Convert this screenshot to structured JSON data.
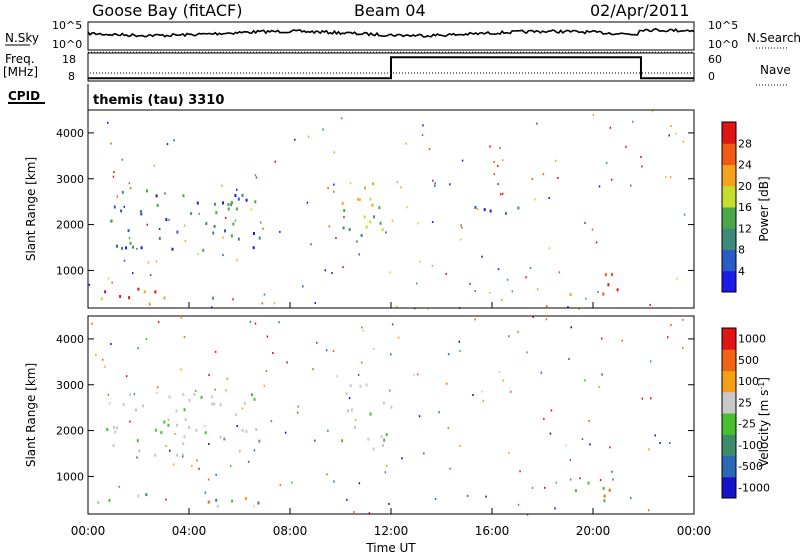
{
  "header": {
    "radar": "Goose Bay (fitACF)",
    "beam": "Beam 04",
    "date": "02/Apr/2011"
  },
  "panels": {
    "noise": {
      "left_label": "N.Sky",
      "right_label": "N.Search",
      "left_ticks": [
        "10^5",
        "10^0"
      ],
      "right_ticks": [
        "10^5",
        "10^0"
      ],
      "sky_level": 0.45,
      "search_level": 0.35
    },
    "freq": {
      "left_label_top": "Freq.",
      "left_label_unit": "[MHz]",
      "right_label": "Nave",
      "left_ticks": [
        "18",
        "8"
      ],
      "right_ticks": [
        "60",
        "0"
      ],
      "segments": [
        [
          0,
          9.0
        ],
        [
          12.0,
          16.5
        ],
        [
          21.9,
          9.0
        ],
        [
          24.0,
          9.0
        ]
      ]
    },
    "cpid": {
      "label": "CPID",
      "text": "themis (tau) 3310"
    }
  },
  "chart_data": [
    {
      "type": "heatmap",
      "name": "Power",
      "ylabel": "Slant Range [km]",
      "xlabel": "",
      "xlim": [
        0,
        24
      ],
      "ylim": [
        180,
        4500
      ],
      "yticks": [
        "1000",
        "2000",
        "3000",
        "4000"
      ],
      "colorbar": {
        "label": "Power [dB]",
        "ticks": [
          "4",
          "8",
          "12",
          "16",
          "20",
          "24",
          "28"
        ],
        "colors": [
          "#1b1be8",
          "#2a5cc4",
          "#3d8a7a",
          "#4aa84a",
          "#c8dc2c",
          "#f5a21c",
          "#f05a14",
          "#e01414"
        ]
      },
      "features": [
        {
          "t0": 0.5,
          "t1": 6.8,
          "r0": 380,
          "r1": 650,
          "level": "mid-high"
        },
        {
          "t0": 0.7,
          "t1": 6.8,
          "r0": 1450,
          "r1": 2850,
          "level": "low-mid"
        },
        {
          "t0": 10.0,
          "t1": 12.0,
          "r0": 1600,
          "r1": 3150,
          "level": "mid"
        },
        {
          "t0": 15.0,
          "t1": 18.3,
          "r0": 2250,
          "r1": 2500,
          "level": "low"
        },
        {
          "t0": 19.0,
          "t1": 21.0,
          "r0": 450,
          "r1": 1000,
          "level": "high"
        }
      ]
    },
    {
      "type": "heatmap",
      "name": "Velocity",
      "ylabel": "Slant Range [km]",
      "xlabel": "Time UT",
      "xlim": [
        0,
        24
      ],
      "ylim": [
        180,
        4500
      ],
      "yticks": [
        "1000",
        "2000",
        "3000",
        "4000"
      ],
      "xticks": [
        "00:00",
        "04:00",
        "08:00",
        "12:00",
        "16:00",
        "20:00",
        "00:00"
      ],
      "colorbar": {
        "label": "Velocity [m s",
        "label_sup": "-1",
        "label_end": "]",
        "ticks": [
          "1000",
          "500",
          "100",
          "25",
          "-25",
          "-100",
          "-500",
          "-1000"
        ],
        "colors": [
          "#1414c8",
          "#2a6ab4",
          "#3c8c6c",
          "#46c02c",
          "#c8c8c8",
          "#f5a014",
          "#f06414",
          "#e01414"
        ]
      },
      "features": [
        {
          "t0": 0.5,
          "t1": 6.8,
          "r0": 380,
          "r1": 650,
          "level": "mixed"
        },
        {
          "t0": 0.7,
          "t1": 6.8,
          "r0": 1450,
          "r1": 2850,
          "level": "near-zero"
        },
        {
          "t0": 10.0,
          "t1": 12.0,
          "r0": 1600,
          "r1": 3150,
          "level": "near-zero"
        },
        {
          "t0": 19.0,
          "t1": 21.0,
          "r0": 450,
          "r1": 1000,
          "level": "negative"
        }
      ]
    }
  ]
}
